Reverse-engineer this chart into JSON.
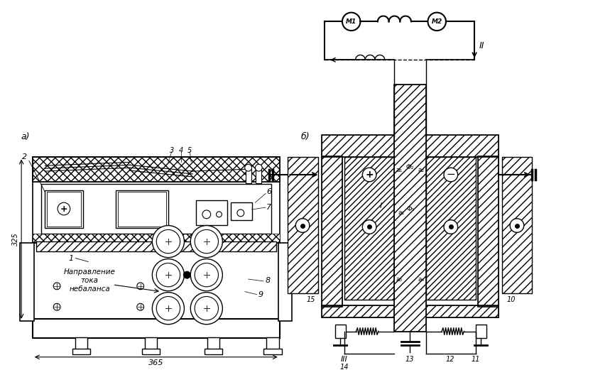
{
  "bg_color": "#ffffff",
  "line_color": "#000000",
  "label_a": "а)",
  "label_b": "б)",
  "dim_325": "325",
  "dim_365": "365",
  "motor_labels": [
    "M1",
    "M2"
  ]
}
